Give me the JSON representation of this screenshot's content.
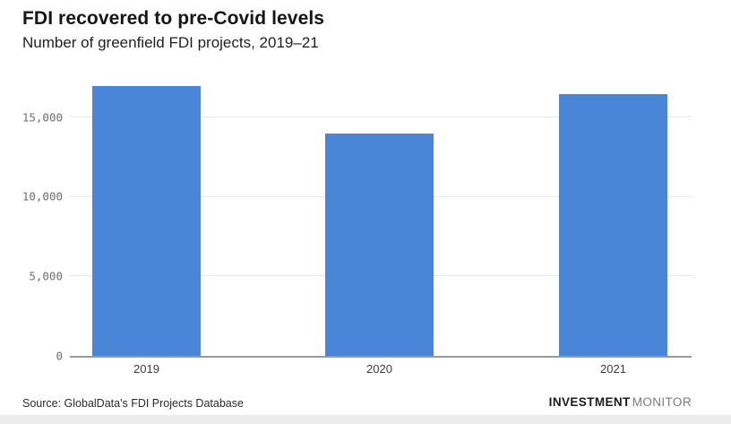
{
  "header": {
    "title": "FDI recovered to pre-Covid levels",
    "subtitle": "Number of greenfield FDI projects, 2019–21"
  },
  "chart_data": {
    "type": "bar",
    "title": "FDI recovered to pre-Covid levels",
    "subtitle": "Number of greenfield FDI projects, 2019–21",
    "categories": [
      "2019",
      "2020",
      "2021"
    ],
    "values": [
      17000,
      14000,
      16500
    ],
    "xlabel": "",
    "ylabel": "",
    "ylim": [
      0,
      17600
    ],
    "yticks": [
      0,
      5000,
      10000,
      15000
    ],
    "ytick_labels": [
      "0",
      "5,000",
      "10,000",
      "15,000"
    ],
    "grid": true,
    "legend": "none",
    "bar_color": "#4a86d8",
    "gridline_color": "#e7e7e7",
    "baseline_color": "#9a9a9a"
  },
  "footer": {
    "source": "Source: GlobalData's FDI Projects Database",
    "brand_primary": "INVESTMENT",
    "brand_secondary": "MONITOR"
  }
}
